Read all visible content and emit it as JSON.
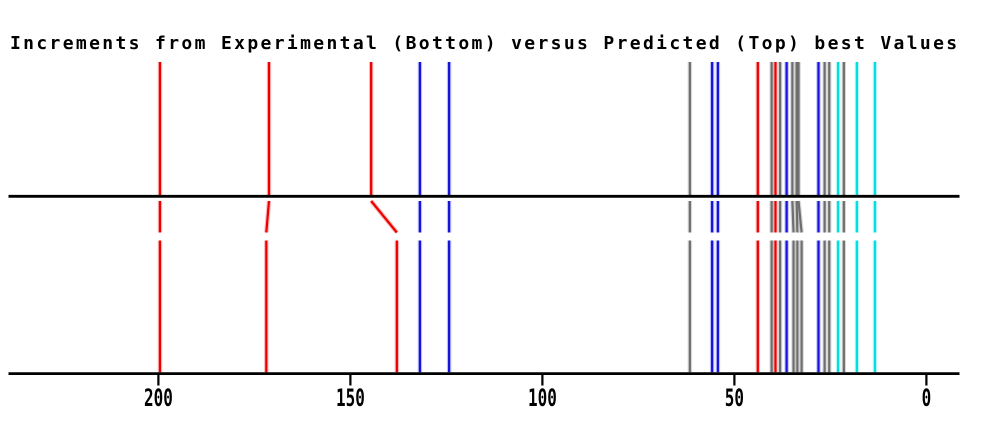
{
  "title": "Increments from Experimental (Bottom) versus Predicted (Top) best Values",
  "colors": {
    "red": "#ee0000",
    "blue": "#1414dd",
    "gray": "#6e6e6e",
    "cyan": "#00e0e0",
    "axis": "#000000"
  },
  "chart_data": {
    "type": "line",
    "subtype": "stick-spectrum-comparison",
    "title": "Increments from Experimental (Bottom) versus Predicted (Top) best Values",
    "xlabel": "",
    "ylabel": "",
    "top_series_label": "Predicted (Top)",
    "bottom_series_label": "Experimental (Bottom)",
    "axis": {
      "min": 0,
      "max": 200,
      "reversed": true,
      "ticks": [
        {
          "value": 200,
          "label": "200"
        },
        {
          "value": 150,
          "label": "150"
        },
        {
          "value": 100,
          "label": "100"
        },
        {
          "value": 50,
          "label": "50"
        },
        {
          "value": 0,
          "label": "0"
        }
      ]
    },
    "lines": [
      {
        "color": "red",
        "predicted": 199.6,
        "experimental": 199.6
      },
      {
        "color": "red",
        "predicted": 171.2,
        "experimental": 171.9
      },
      {
        "color": "red",
        "predicted": 144.6,
        "experimental": 137.9
      },
      {
        "color": "blue",
        "predicted": 131.9,
        "experimental": 131.9
      },
      {
        "color": "blue",
        "predicted": 124.3,
        "experimental": 124.3
      },
      {
        "color": "gray",
        "predicted": 61.6,
        "experimental": 61.6
      },
      {
        "color": "blue",
        "predicted": 55.8,
        "experimental": 55.8
      },
      {
        "color": "blue",
        "predicted": 54.3,
        "experimental": 54.3
      },
      {
        "color": "red",
        "predicted": 43.9,
        "experimental": 43.9
      },
      {
        "color": "gray",
        "predicted": 40.3,
        "experimental": 40.3
      },
      {
        "color": "red",
        "predicted": 39.3,
        "experimental": 39.3
      },
      {
        "color": "gray",
        "predicted": 38.1,
        "experimental": 38.1
      },
      {
        "color": "blue",
        "predicted": 36.4,
        "experimental": 36.4
      },
      {
        "color": "gray",
        "predicted": 34.9,
        "experimental": 34.6
      },
      {
        "color": "gray",
        "predicted": 33.8,
        "experimental": 33.6
      },
      {
        "color": "gray",
        "predicted": 33.3,
        "experimental": 32.5
      },
      {
        "color": "blue",
        "predicted": 28.1,
        "experimental": 28.1
      },
      {
        "color": "gray",
        "predicted": 26.5,
        "experimental": 26.5
      },
      {
        "color": "gray",
        "predicted": 25.3,
        "experimental": 25.3
      },
      {
        "color": "cyan",
        "predicted": 23.0,
        "experimental": 23.0
      },
      {
        "color": "gray",
        "predicted": 21.5,
        "experimental": 21.5
      },
      {
        "color": "cyan",
        "predicted": 18.1,
        "experimental": 18.1
      },
      {
        "color": "cyan",
        "predicted": 13.4,
        "experimental": 13.4
      }
    ]
  }
}
